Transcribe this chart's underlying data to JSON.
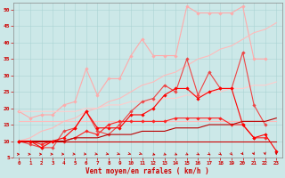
{
  "x": [
    0,
    1,
    2,
    3,
    4,
    5,
    6,
    7,
    8,
    9,
    10,
    11,
    12,
    13,
    14,
    15,
    16,
    17,
    18,
    19,
    20,
    21,
    22,
    23
  ],
  "series": [
    {
      "color": "#ffaaaa",
      "linewidth": 0.8,
      "marker": "D",
      "markersize": 1.8,
      "values": [
        19,
        17,
        18,
        18,
        21,
        22,
        32,
        24,
        29,
        29,
        36,
        41,
        36,
        36,
        36,
        51,
        49,
        49,
        49,
        49,
        51,
        35,
        35,
        null
      ]
    },
    {
      "color": "#ffbbbb",
      "linewidth": 0.8,
      "marker": null,
      "markersize": 0,
      "values": [
        10,
        11,
        13,
        14,
        16,
        17,
        19,
        20,
        22,
        23,
        25,
        27,
        28,
        30,
        31,
        33,
        35,
        36,
        38,
        39,
        41,
        43,
        44,
        46
      ]
    },
    {
      "color": "#ffcccc",
      "linewidth": 0.8,
      "marker": null,
      "markersize": 0,
      "values": [
        19,
        19,
        19,
        19,
        19,
        19,
        20,
        20,
        21,
        21,
        22,
        22,
        22,
        23,
        23,
        24,
        24,
        25,
        25,
        26,
        26,
        27,
        27,
        28
      ]
    },
    {
      "color": "#ffbbbb",
      "linewidth": 0.8,
      "marker": null,
      "markersize": 0,
      "values": [
        16,
        16,
        16,
        16,
        16,
        16,
        16,
        16,
        16,
        16,
        16,
        16,
        16,
        16,
        16,
        16,
        16,
        16,
        16,
        16,
        16,
        16,
        16,
        16
      ]
    },
    {
      "color": "#ee4444",
      "linewidth": 0.8,
      "marker": "D",
      "markersize": 1.8,
      "values": [
        10,
        9,
        8,
        8,
        13,
        14,
        19,
        13,
        12,
        15,
        19,
        22,
        23,
        27,
        25,
        35,
        24,
        31,
        26,
        26,
        37,
        21,
        15,
        null
      ]
    },
    {
      "color": "#ff2222",
      "linewidth": 0.8,
      "marker": "D",
      "markersize": 1.8,
      "values": [
        10,
        10,
        9,
        10,
        10,
        11,
        13,
        12,
        15,
        16,
        16,
        16,
        16,
        16,
        17,
        17,
        17,
        17,
        17,
        15,
        15,
        11,
        11,
        null
      ]
    },
    {
      "color": "#cc0000",
      "linewidth": 0.8,
      "marker": null,
      "markersize": 0,
      "values": [
        10,
        10,
        10,
        10,
        10,
        10,
        10,
        10,
        10,
        10,
        10,
        10,
        10,
        10,
        10,
        10,
        10,
        10,
        10,
        10,
        10,
        10,
        10,
        10
      ]
    },
    {
      "color": "#bb0000",
      "linewidth": 0.8,
      "marker": null,
      "markersize": 0,
      "values": [
        10,
        10,
        10,
        10,
        10,
        11,
        11,
        11,
        12,
        12,
        12,
        13,
        13,
        13,
        14,
        14,
        14,
        15,
        15,
        15,
        16,
        16,
        16,
        17
      ]
    },
    {
      "color": "#ff0000",
      "linewidth": 0.8,
      "marker": "D",
      "markersize": 1.8,
      "values": [
        10,
        10,
        8,
        10,
        11,
        14,
        19,
        14,
        14,
        14,
        18,
        18,
        20,
        24,
        26,
        26,
        23,
        25,
        26,
        26,
        15,
        11,
        12,
        7
      ]
    }
  ],
  "xlabel": "Vent moyen/en rafales ( km/h )",
  "xlim_min": -0.5,
  "xlim_max": 23.5,
  "ylim_min": 5,
  "ylim_max": 52,
  "yticks": [
    5,
    10,
    15,
    20,
    25,
    30,
    35,
    40,
    45,
    50
  ],
  "xticks": [
    0,
    1,
    2,
    3,
    4,
    5,
    6,
    7,
    8,
    9,
    10,
    11,
    12,
    13,
    14,
    15,
    16,
    17,
    18,
    19,
    20,
    21,
    22,
    23
  ],
  "bg_color": "#cce8e8",
  "grid_color": "#aad4d4",
  "tick_color": "#cc0000",
  "label_color": "#cc0000"
}
